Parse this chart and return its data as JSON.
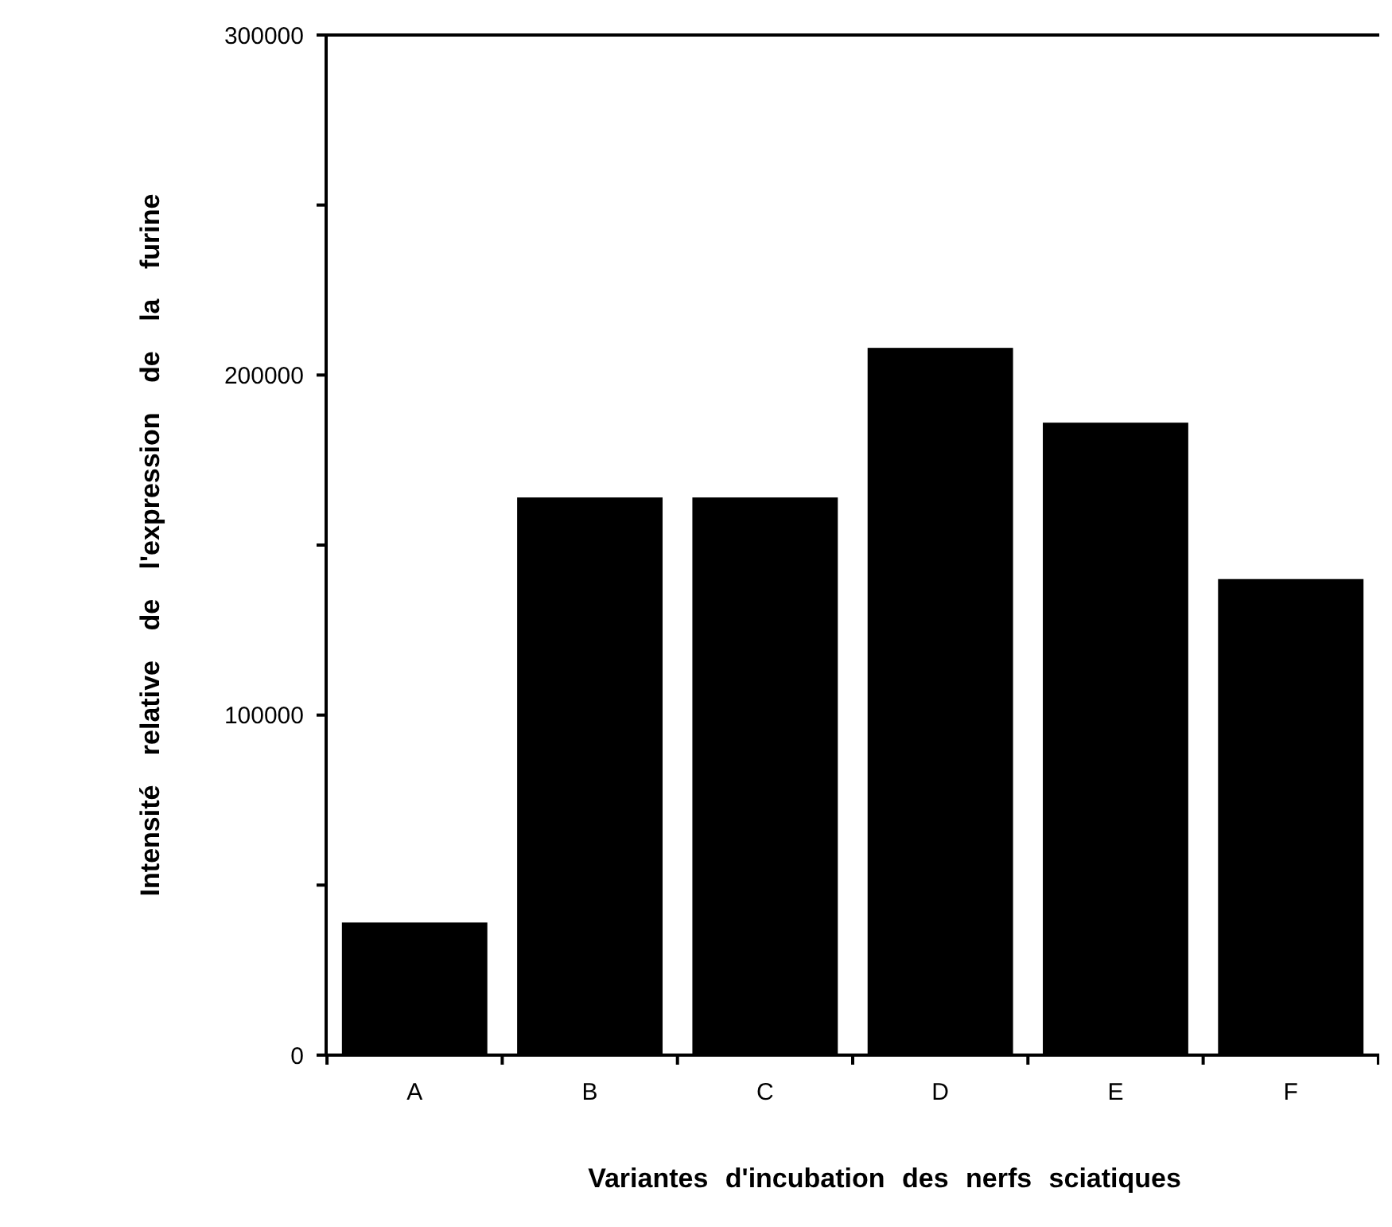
{
  "chart_data": {
    "type": "bar",
    "xlabel": "Variantes d'incubation des nerfs sciatiques",
    "ylabel": "Intensité relative de l'expression de la furine",
    "categories": [
      "A",
      "B",
      "C",
      "D",
      "E",
      "F"
    ],
    "values": [
      39000,
      164000,
      164000,
      208000,
      186000,
      140000
    ],
    "color": "#000000",
    "ylim": [
      0,
      300000
    ],
    "yticks": [
      0,
      {
        "value": 50000,
        "label": null
      },
      100000,
      {
        "value": 150000,
        "label": null
      },
      200000,
      {
        "value": 250000,
        "label": null
      },
      300000
    ],
    "grid": false
  }
}
